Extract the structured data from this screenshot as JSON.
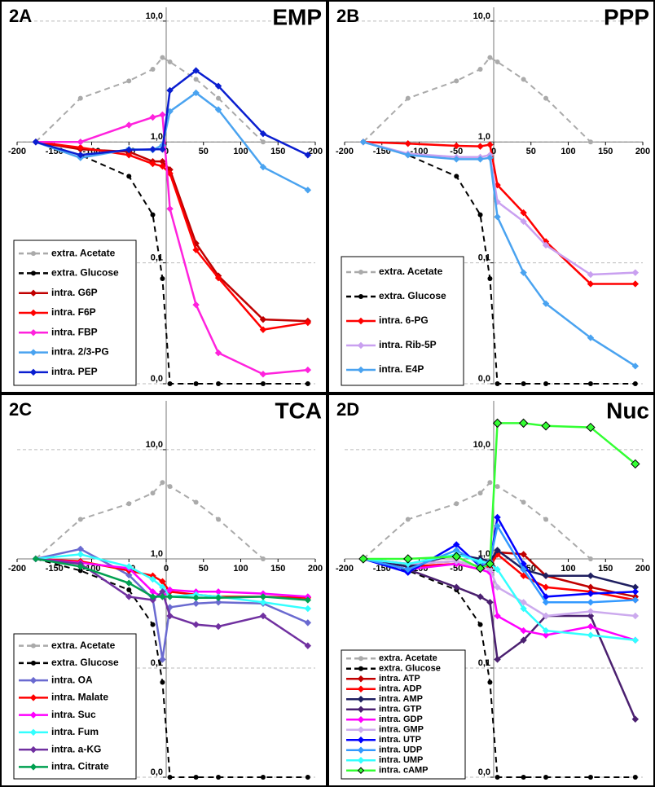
{
  "chart_data": [
    {
      "type": "line",
      "label": "2A",
      "title": "EMP",
      "x": [
        -175,
        -115,
        -50,
        -18,
        -5,
        5,
        40,
        70,
        130,
        190
      ],
      "xlim": [
        -200,
        200
      ],
      "xticks": [
        -200,
        -150,
        -100,
        -50,
        0,
        50,
        100,
        150,
        200
      ],
      "ylim": [
        0.01,
        13
      ],
      "log_y": true,
      "grid": true,
      "legend": "lower left",
      "yticks": [
        {
          "value": 0.01,
          "label": "0,0"
        },
        {
          "value": 0.1,
          "label": "0,1"
        },
        {
          "value": 1,
          "label": "1,0"
        },
        {
          "value": 10,
          "label": "10,0"
        }
      ],
      "series": [
        {
          "name": "extra. Acetate",
          "color": "#aaaaaa",
          "linestyle": "dashed",
          "marker": "circle",
          "values": [
            1.0,
            2.3,
            3.2,
            4.0,
            5.0,
            4.6,
            3.3,
            2.3,
            1.0,
            null
          ]
        },
        {
          "name": "extra. Glucose",
          "color": "#000000",
          "linestyle": "dashed",
          "marker": "circle",
          "values": [
            1.0,
            0.78,
            0.52,
            0.25,
            0.074,
            0.01,
            0.01,
            0.01,
            0.01,
            0.01
          ]
        },
        {
          "name": "intra. G6P",
          "color": "#c00000",
          "linestyle": "solid",
          "marker": "diamond",
          "values": [
            1.0,
            0.87,
            0.83,
            0.69,
            0.69,
            0.59,
            0.145,
            0.078,
            0.034,
            0.033
          ]
        },
        {
          "name": "intra. F6P",
          "color": "#ff0000",
          "linestyle": "solid",
          "marker": "diamond",
          "values": [
            1.0,
            0.9,
            0.78,
            0.66,
            0.63,
            0.55,
            0.128,
            0.075,
            0.028,
            0.032
          ]
        },
        {
          "name": "intra. FBP",
          "color": "#ff22dd",
          "linestyle": "solid",
          "marker": "diamond",
          "values": [
            1.0,
            1.0,
            1.38,
            1.6,
            1.68,
            0.28,
            0.045,
            0.018,
            0.012,
            0.013
          ]
        },
        {
          "name": "intra. 2/3-PG",
          "color": "#4aa3f0",
          "linestyle": "solid",
          "marker": "diamond",
          "values": [
            1.0,
            0.74,
            0.87,
            0.86,
            0.94,
            1.79,
            2.55,
            1.85,
            0.62,
            0.4
          ]
        },
        {
          "name": "intra. PEP",
          "color": "#0a1ed0",
          "linestyle": "solid",
          "marker": "diamond",
          "values": [
            1.0,
            0.78,
            0.86,
            0.87,
            0.87,
            2.67,
            3.9,
            2.9,
            1.17,
            0.78
          ]
        }
      ]
    },
    {
      "type": "line",
      "label": "2B",
      "title": "PPP",
      "x": [
        -175,
        -115,
        -50,
        -18,
        -5,
        5,
        40,
        70,
        130,
        190
      ],
      "xlim": [
        -200,
        200
      ],
      "xticks": [
        -200,
        -150,
        -100,
        -50,
        0,
        50,
        100,
        150,
        200
      ],
      "ylim": [
        0.01,
        13
      ],
      "log_y": true,
      "grid": true,
      "legend": "lower left",
      "yticks": [
        {
          "value": 0.01,
          "label": "0,0"
        },
        {
          "value": 0.1,
          "label": "0,1"
        },
        {
          "value": 1,
          "label": "1,0"
        },
        {
          "value": 10,
          "label": "10,0"
        }
      ],
      "series": [
        {
          "name": "extra. Acetate",
          "color": "#aaaaaa",
          "linestyle": "dashed",
          "marker": "circle",
          "values": [
            1.0,
            2.3,
            3.2,
            4.0,
            5.0,
            4.6,
            3.3,
            2.3,
            1.0,
            null
          ]
        },
        {
          "name": "extra. Glucose",
          "color": "#000000",
          "linestyle": "dashed",
          "marker": "circle",
          "values": [
            1.0,
            0.78,
            0.52,
            0.25,
            0.074,
            0.01,
            0.01,
            0.01,
            0.01,
            0.01
          ]
        },
        {
          "name": "intra. 6-PG",
          "color": "#ff0000",
          "linestyle": "solid",
          "marker": "diamond",
          "values": [
            1.0,
            0.97,
            0.93,
            0.92,
            0.95,
            0.44,
            0.26,
            0.15,
            0.067,
            0.067
          ]
        },
        {
          "name": "intra. Rib-5P",
          "color": "#c9a0f0",
          "linestyle": "solid",
          "marker": "diamond",
          "values": [
            1.0,
            0.8,
            0.75,
            0.75,
            0.78,
            0.32,
            0.22,
            0.14,
            0.08,
            0.083
          ]
        },
        {
          "name": "intra. E4P",
          "color": "#4aa3f0",
          "linestyle": "solid",
          "marker": "diamond",
          "values": [
            1.0,
            0.78,
            0.72,
            0.72,
            0.74,
            0.24,
            0.083,
            0.046,
            0.024,
            0.014
          ]
        }
      ]
    },
    {
      "type": "line",
      "label": "2C",
      "title": "TCA",
      "x": [
        -175,
        -115,
        -50,
        -18,
        -5,
        5,
        40,
        70,
        130,
        190
      ],
      "xlim": [
        -200,
        200
      ],
      "xticks": [
        -200,
        -150,
        -100,
        -50,
        0,
        50,
        100,
        150,
        200
      ],
      "ylim": [
        0.01,
        28
      ],
      "log_y": true,
      "grid": true,
      "legend": "lower left",
      "yticks": [
        {
          "value": 0.01,
          "label": "0,0"
        },
        {
          "value": 0.1,
          "label": "0,1"
        },
        {
          "value": 1,
          "label": "1,0"
        },
        {
          "value": 10,
          "label": "10,0"
        }
      ],
      "series": [
        {
          "name": "extra. Acetate",
          "color": "#aaaaaa",
          "linestyle": "dashed",
          "marker": "circle",
          "values": [
            1.0,
            2.3,
            3.2,
            4.0,
            5.0,
            4.6,
            3.3,
            2.3,
            1.0,
            null
          ]
        },
        {
          "name": "extra. Glucose",
          "color": "#000000",
          "linestyle": "dashed",
          "marker": "circle",
          "values": [
            1.0,
            0.78,
            0.52,
            0.25,
            0.074,
            0.01,
            0.01,
            0.01,
            0.01,
            0.01
          ]
        },
        {
          "name": "intra. OA",
          "color": "#6a6ad0",
          "linestyle": "solid",
          "marker": "diamond",
          "values": [
            1.0,
            1.23,
            0.71,
            0.43,
            0.12,
            0.36,
            0.39,
            0.4,
            0.39,
            0.26
          ]
        },
        {
          "name": "intra. Malate",
          "color": "#ff0000",
          "linestyle": "solid",
          "marker": "diamond",
          "values": [
            1.0,
            0.95,
            0.78,
            0.7,
            0.62,
            0.5,
            0.47,
            0.45,
            0.45,
            0.44
          ]
        },
        {
          "name": "intra. Suc",
          "color": "#ff00ff",
          "linestyle": "solid",
          "marker": "diamond",
          "values": [
            1.0,
            0.92,
            0.82,
            0.5,
            0.45,
            0.52,
            0.5,
            0.5,
            0.48,
            0.45
          ]
        },
        {
          "name": "intra. Fum",
          "color": "#33ffff",
          "linestyle": "solid",
          "marker": "diamond",
          "values": [
            1.0,
            1.1,
            0.85,
            0.65,
            0.55,
            0.45,
            0.47,
            0.45,
            0.4,
            0.35
          ]
        },
        {
          "name": "intra. a-KG",
          "color": "#7030a0",
          "linestyle": "solid",
          "marker": "diamond",
          "values": [
            1.0,
            0.9,
            0.45,
            0.42,
            0.5,
            0.3,
            0.25,
            0.24,
            0.3,
            0.16
          ]
        },
        {
          "name": "intra. Citrate",
          "color": "#00a050",
          "linestyle": "solid",
          "marker": "diamond",
          "values": [
            1.0,
            0.85,
            0.6,
            0.45,
            0.45,
            0.45,
            0.44,
            0.44,
            0.45,
            0.42
          ]
        }
      ]
    },
    {
      "type": "line",
      "label": "2D",
      "title": "Nuc",
      "x": [
        -175,
        -115,
        -50,
        -18,
        -5,
        5,
        40,
        70,
        130,
        190
      ],
      "xlim": [
        -200,
        200
      ],
      "xticks": [
        -200,
        -150,
        -100,
        -50,
        0,
        50,
        100,
        150,
        200
      ],
      "ylim": [
        0.01,
        28
      ],
      "log_y": true,
      "grid": true,
      "legend": "lower left",
      "yticks": [
        {
          "value": 0.01,
          "label": "0,0"
        },
        {
          "value": 0.1,
          "label": "0,1"
        },
        {
          "value": 1,
          "label": "1,0"
        },
        {
          "value": 10,
          "label": "10,0"
        }
      ],
      "series": [
        {
          "name": "extra. Acetate",
          "color": "#aaaaaa",
          "linestyle": "dashed",
          "marker": "circle",
          "values": [
            1.0,
            2.3,
            3.2,
            4.0,
            5.0,
            4.6,
            3.3,
            2.3,
            1.0,
            null
          ]
        },
        {
          "name": "extra. Glucose",
          "color": "#000000",
          "linestyle": "dashed",
          "marker": "circle",
          "values": [
            1.0,
            0.78,
            0.52,
            0.25,
            0.074,
            0.01,
            0.01,
            0.01,
            0.01,
            0.01
          ]
        },
        {
          "name": "intra. ATP",
          "color": "#c00000",
          "linestyle": "solid",
          "marker": "diamond",
          "values": [
            1.0,
            0.9,
            0.95,
            0.85,
            0.9,
            1.15,
            1.1,
            0.7,
            0.55,
            0.45
          ]
        },
        {
          "name": "intra. ADP",
          "color": "#ff0000",
          "linestyle": "solid",
          "marker": "diamond",
          "values": [
            1.0,
            0.85,
            0.9,
            0.8,
            0.85,
            1.1,
            0.7,
            0.55,
            0.5,
            0.42
          ]
        },
        {
          "name": "intra. AMP",
          "color": "#1f1f60",
          "linestyle": "solid",
          "marker": "diamond",
          "values": [
            1.0,
            0.85,
            1.1,
            1.0,
            0.95,
            1.2,
            0.8,
            0.7,
            0.7,
            0.55
          ]
        },
        {
          "name": "intra. GTP",
          "color": "#4b2070",
          "linestyle": "solid",
          "marker": "diamond",
          "values": [
            1.0,
            0.8,
            0.55,
            0.45,
            0.4,
            0.12,
            0.18,
            0.3,
            0.3,
            0.034
          ]
        },
        {
          "name": "intra. GDP",
          "color": "#ff00ff",
          "linestyle": "solid",
          "marker": "diamond",
          "values": [
            1.0,
            0.8,
            0.9,
            0.8,
            0.75,
            0.3,
            0.22,
            0.2,
            0.24,
            0.18
          ]
        },
        {
          "name": "intra. GMP",
          "color": "#ccaaee",
          "linestyle": "solid",
          "marker": "diamond",
          "values": [
            1.0,
            0.9,
            0.95,
            0.85,
            0.8,
            0.55,
            0.4,
            0.3,
            0.33,
            0.3
          ]
        },
        {
          "name": "intra. UTP",
          "color": "#0000ff",
          "linestyle": "solid",
          "marker": "diamond",
          "values": [
            1.0,
            0.75,
            1.35,
            0.85,
            0.9,
            2.4,
            0.9,
            0.45,
            0.48,
            0.5
          ]
        },
        {
          "name": "intra. UDP",
          "color": "#3399ff",
          "linestyle": "solid",
          "marker": "diamond",
          "values": [
            1.0,
            0.8,
            1.2,
            0.9,
            0.95,
            2.0,
            0.8,
            0.4,
            0.4,
            0.42
          ]
        },
        {
          "name": "intra. UMP",
          "color": "#33ffff",
          "linestyle": "solid",
          "marker": "diamond",
          "values": [
            1.0,
            0.9,
            1.1,
            0.95,
            0.9,
            0.8,
            0.35,
            0.22,
            0.2,
            0.18
          ]
        },
        {
          "name": "intra. cAMP",
          "color": "#33ff33",
          "edgecolor": "#000000",
          "linestyle": "solid",
          "marker": "diamond",
          "values": [
            1.0,
            1.0,
            1.05,
            0.82,
            0.9,
            17.5,
            17.5,
            16.5,
            16,
            7.4
          ]
        }
      ]
    }
  ]
}
